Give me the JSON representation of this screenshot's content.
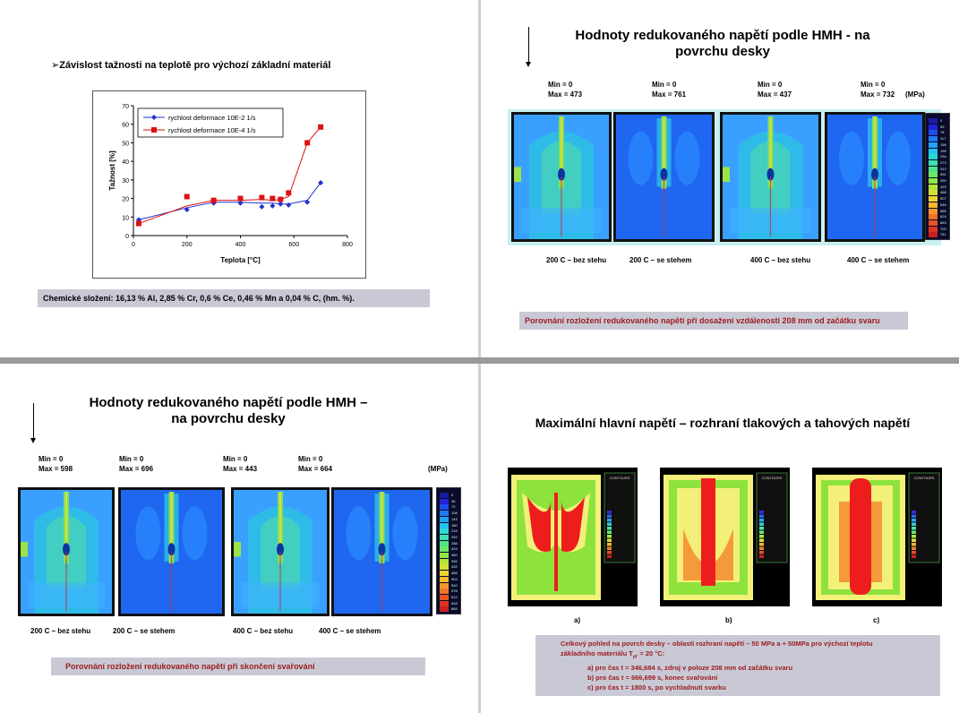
{
  "q1": {
    "heading": "Závislost tažnosti na teplotě pro výchozí základní materiál",
    "chart_data": {
      "type": "scatter",
      "xlabel": "Teplota [°C]",
      "ylabel": "Tažnost [%]",
      "xlim": [
        0,
        800
      ],
      "ylim": [
        0,
        70
      ],
      "xticks": [
        "0",
        "200",
        "400",
        "600",
        "800"
      ],
      "yticks": [
        "0",
        "10",
        "20",
        "30",
        "40",
        "50",
        "60",
        "70"
      ],
      "legend_position": "top-left",
      "series": [
        {
          "name": "rychlost deformace 10E-2 1/s",
          "color": "#2233cc",
          "marker": "diamond",
          "points": [
            [
              20,
              8.5
            ],
            [
              200,
              14
            ],
            [
              300,
              17.5
            ],
            [
              400,
              17.5
            ],
            [
              480,
              15.5
            ],
            [
              520,
              16
            ],
            [
              550,
              17
            ],
            [
              580,
              16.5
            ],
            [
              650,
              18
            ],
            [
              700,
              28.5
            ]
          ],
          "line": [
            [
              20,
              8.5
            ],
            [
              200,
              15
            ],
            [
              300,
              18
            ],
            [
              400,
              18
            ],
            [
              480,
              17.5
            ],
            [
              520,
              17.5
            ],
            [
              550,
              17
            ],
            [
              580,
              17
            ],
            [
              650,
              19
            ],
            [
              700,
              28.5
            ]
          ]
        },
        {
          "name": "rychlost deformace 10E-4 1/s",
          "color": "#dd1111",
          "marker": "square",
          "points": [
            [
              20,
              6.5
            ],
            [
              200,
              21
            ],
            [
              300,
              19
            ],
            [
              400,
              20
            ],
            [
              480,
              20.5
            ],
            [
              520,
              20
            ],
            [
              550,
              19.5
            ],
            [
              580,
              23
            ],
            [
              650,
              50
            ],
            [
              700,
              58.5
            ]
          ],
          "line": [
            [
              20,
              6.5
            ],
            [
              200,
              16
            ],
            [
              300,
              19
            ],
            [
              400,
              19
            ],
            [
              480,
              19.5
            ],
            [
              520,
              19
            ],
            [
              550,
              19.5
            ],
            [
              580,
              21
            ],
            [
              650,
              50
            ],
            [
              700,
              58.5
            ]
          ]
        }
      ]
    },
    "composition": "Chemické složení: 16,13 % Al, 2,85 % Cr, 0,6 % Ce, 0,46 % Mn a 0,04 % C, (hm.  %)."
  },
  "q2": {
    "title_line1": "Hodnoty redukovaného napětí podle HMH - na",
    "title_line2": "povrchu desky",
    "minmax": [
      {
        "min": "Min = 0",
        "max": "Max = 473"
      },
      {
        "min": "Min = 0",
        "max": "Max = 761"
      },
      {
        "min": "Min = 0",
        "max": "Max = 437"
      },
      {
        "min": "Min = 0",
        "max": "Max = 732"
      }
    ],
    "unit": "(MPa)",
    "captions": [
      "200   C – bez stehu",
      "200   C – se stehem",
      "400   C – bez stehu",
      "400   C – se stehem"
    ],
    "legend_values": [
      "0",
      "39",
      "78",
      "117",
      "156",
      "195",
      "234",
      "273",
      "312",
      "351",
      "390",
      "429",
      "468",
      "507",
      "546",
      "585",
      "624",
      "663",
      "702",
      "741"
    ],
    "note": "Porovnání rozložení redukovaného napětí při dosažení vzdálenosti 208 mm od začátku svaru"
  },
  "q3": {
    "title_line1": "Hodnoty redukovaného napětí podle HMH –",
    "title_line2": "na povrchu desky",
    "minmax": [
      {
        "min": "Min = 0",
        "max": "Max = 598"
      },
      {
        "min": "Min = 0",
        "max": "Max = 696"
      },
      {
        "min": "Min = 0",
        "max": "Max = 443"
      },
      {
        "min": "Min = 0",
        "max": "Max = 664"
      }
    ],
    "unit": "(MPa)",
    "captions": [
      "200   C – bez stehu",
      "200   C – se stehem",
      "400   C – bez stehu",
      "400   C – se stehem"
    ],
    "legend_values": [
      "0",
      "36",
      "72",
      "108",
      "144",
      "180",
      "216",
      "252",
      "288",
      "324",
      "360",
      "396",
      "432",
      "468",
      "504",
      "540",
      "576",
      "612",
      "648",
      "684"
    ],
    "note": "Porovnání rozložení redukovaného napětí při skončení svařování"
  },
  "q4": {
    "title": "Maximální hlavní napětí – rozhraní tlakových a tahových napětí",
    "panel_labels": [
      "a)",
      "b)",
      "c)"
    ],
    "contours_label": "CONTOURS",
    "note_line1": "Celkový pohled na povrch desky – oblasti rozhraní napětí  – 50 MPa a + 50MPa  pro výchozí  teplotu",
    "note_line2": "základního materiálu T",
    "note_sub": "pť",
    "note_line2_end": " = 20 °C:",
    "items": [
      "a) pro čas t = 346,684 s, zdroj v poloze 208 mm od začátku svaru",
      "b) pro čas t = 666,699 s, konec svařování",
      "c) pro čas t = 1800 s, po vychladnutí svarku"
    ]
  }
}
